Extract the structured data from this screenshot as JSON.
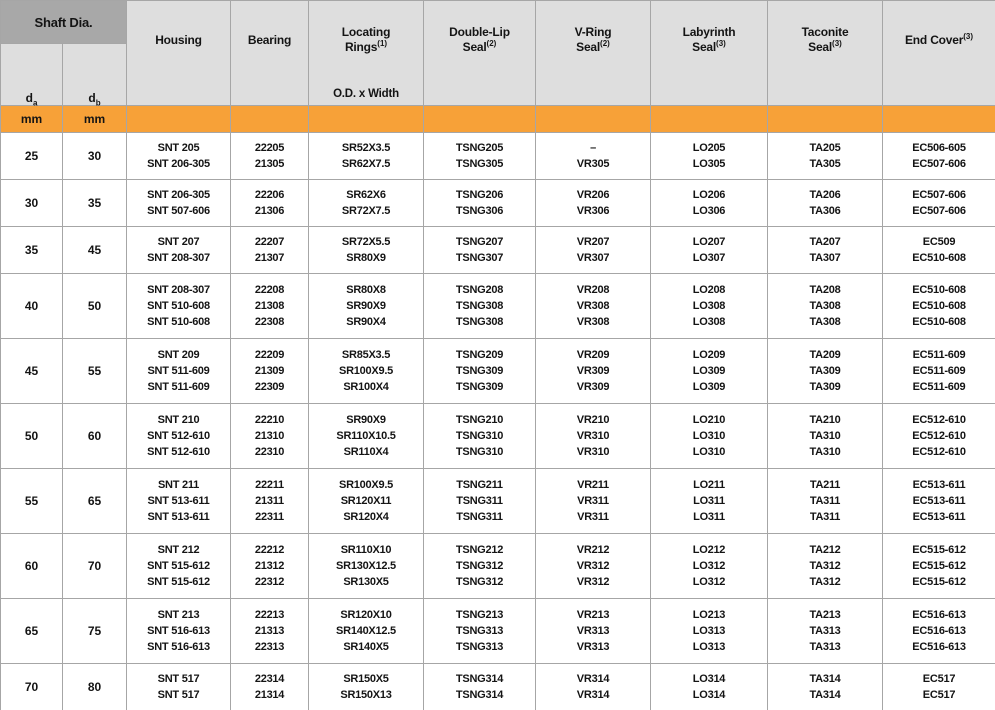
{
  "colors": {
    "orange": "#F7A138",
    "header_dark": "#A8A8A8",
    "header_light": "#DEDEDE",
    "grid_line": "#A6A6A6",
    "text": "#141414",
    "orange_divider": "#C4883A"
  },
  "table": {
    "shaft_group": {
      "title": "Shaft Dia.",
      "sub_columns": [
        {
          "symbol": "d",
          "subscript": "a",
          "unit": "mm"
        },
        {
          "symbol": "d",
          "subscript": "b",
          "unit": "mm"
        }
      ]
    },
    "columns": [
      {
        "key": "housing",
        "lines": [
          "Housing"
        ],
        "sup": "",
        "note": ""
      },
      {
        "key": "bearing",
        "lines": [
          "Bearing"
        ],
        "sup": "",
        "note": ""
      },
      {
        "key": "locating-rings",
        "lines": [
          "Locating",
          "Rings"
        ],
        "sup": "(1)",
        "note": "O.D. x Width"
      },
      {
        "key": "double-lip-seal",
        "lines": [
          "Double-Lip",
          "Seal"
        ],
        "sup": "(2)",
        "note": ""
      },
      {
        "key": "v-ring-seal",
        "lines": [
          "V-Ring",
          "Seal"
        ],
        "sup": "(2)",
        "note": ""
      },
      {
        "key": "labyrinth-seal",
        "lines": [
          "Labyrinth",
          "Seal"
        ],
        "sup": "(3)",
        "note": ""
      },
      {
        "key": "taconite-seal",
        "lines": [
          "Taconite",
          "Seal"
        ],
        "sup": "(3)",
        "note": ""
      },
      {
        "key": "end-cover",
        "lines": [
          "End Cover"
        ],
        "sup": "(3)",
        "note": ""
      }
    ],
    "rows": [
      {
        "da": "25",
        "db": "30",
        "housing": [
          "SNT 205",
          "SNT 206-305"
        ],
        "bearing": [
          "22205",
          "21305"
        ],
        "locating_rings": [
          "SR52X3.5",
          "SR62X7.5"
        ],
        "double_lip_seal": [
          "TSNG205",
          "TSNG305"
        ],
        "v_ring_seal": [
          "–",
          "VR305"
        ],
        "labyrinth_seal": [
          "LO205",
          "LO305"
        ],
        "taconite_seal": [
          "TA205",
          "TA305"
        ],
        "end_cover": [
          "EC506-605",
          "EC507-606"
        ]
      },
      {
        "da": "30",
        "db": "35",
        "housing": [
          "SNT 206-305",
          "SNT 507-606"
        ],
        "bearing": [
          "22206",
          "21306"
        ],
        "locating_rings": [
          "SR62X6",
          "SR72X7.5"
        ],
        "double_lip_seal": [
          "TSNG206",
          "TSNG306"
        ],
        "v_ring_seal": [
          "VR206",
          "VR306"
        ],
        "labyrinth_seal": [
          "LO206",
          "LO306"
        ],
        "taconite_seal": [
          "TA206",
          "TA306"
        ],
        "end_cover": [
          "EC507-606",
          "EC507-606"
        ]
      },
      {
        "da": "35",
        "db": "45",
        "housing": [
          "SNT 207",
          "SNT 208-307"
        ],
        "bearing": [
          "22207",
          "21307"
        ],
        "locating_rings": [
          "SR72X5.5",
          "SR80X9"
        ],
        "double_lip_seal": [
          "TSNG207",
          "TSNG307"
        ],
        "v_ring_seal": [
          "VR207",
          "VR307"
        ],
        "labyrinth_seal": [
          "LO207",
          "LO307"
        ],
        "taconite_seal": [
          "TA207",
          "TA307"
        ],
        "end_cover": [
          "EC509",
          "EC510-608"
        ]
      },
      {
        "da": "40",
        "db": "50",
        "housing": [
          "SNT 208-307",
          "SNT 510-608",
          "SNT 510-608"
        ],
        "bearing": [
          "22208",
          "21308",
          "22308"
        ],
        "locating_rings": [
          "SR80X8",
          "SR90X9",
          "SR90X4"
        ],
        "double_lip_seal": [
          "TSNG208",
          "TSNG308",
          "TSNG308"
        ],
        "v_ring_seal": [
          "VR208",
          "VR308",
          "VR308"
        ],
        "labyrinth_seal": [
          "LO208",
          "LO308",
          "LO308"
        ],
        "taconite_seal": [
          "TA208",
          "TA308",
          "TA308"
        ],
        "end_cover": [
          "EC510-608",
          "EC510-608",
          "EC510-608"
        ]
      },
      {
        "da": "45",
        "db": "55",
        "housing": [
          "SNT 209",
          "SNT 511-609",
          "SNT 511-609"
        ],
        "bearing": [
          "22209",
          "21309",
          "22309"
        ],
        "locating_rings": [
          "SR85X3.5",
          "SR100X9.5",
          "SR100X4"
        ],
        "double_lip_seal": [
          "TSNG209",
          "TSNG309",
          "TSNG309"
        ],
        "v_ring_seal": [
          "VR209",
          "VR309",
          "VR309"
        ],
        "labyrinth_seal": [
          "LO209",
          "LO309",
          "LO309"
        ],
        "taconite_seal": [
          "TA209",
          "TA309",
          "TA309"
        ],
        "end_cover": [
          "EC511-609",
          "EC511-609",
          "EC511-609"
        ]
      },
      {
        "da": "50",
        "db": "60",
        "housing": [
          "SNT 210",
          "SNT 512-610",
          "SNT 512-610"
        ],
        "bearing": [
          "22210",
          "21310",
          "22310"
        ],
        "locating_rings": [
          "SR90X9",
          "SR110X10.5",
          "SR110X4"
        ],
        "double_lip_seal": [
          "TSNG210",
          "TSNG310",
          "TSNG310"
        ],
        "v_ring_seal": [
          "VR210",
          "VR310",
          "VR310"
        ],
        "labyrinth_seal": [
          "LO210",
          "LO310",
          "LO310"
        ],
        "taconite_seal": [
          "TA210",
          "TA310",
          "TA310"
        ],
        "end_cover": [
          "EC512-610",
          "EC512-610",
          "EC512-610"
        ]
      },
      {
        "da": "55",
        "db": "65",
        "housing": [
          "SNT 211",
          "SNT 513-611",
          "SNT 513-611"
        ],
        "bearing": [
          "22211",
          "21311",
          "22311"
        ],
        "locating_rings": [
          "SR100X9.5",
          "SR120X11",
          "SR120X4"
        ],
        "double_lip_seal": [
          "TSNG211",
          "TSNG311",
          "TSNG311"
        ],
        "v_ring_seal": [
          "VR211",
          "VR311",
          "VR311"
        ],
        "labyrinth_seal": [
          "LO211",
          "LO311",
          "LO311"
        ],
        "taconite_seal": [
          "TA211",
          "TA311",
          "TA311"
        ],
        "end_cover": [
          "EC513-611",
          "EC513-611",
          "EC513-611"
        ]
      },
      {
        "da": "60",
        "db": "70",
        "housing": [
          "SNT 212",
          "SNT 515-612",
          "SNT 515-612"
        ],
        "bearing": [
          "22212",
          "21312",
          "22312"
        ],
        "locating_rings": [
          "SR110X10",
          "SR130X12.5",
          "SR130X5"
        ],
        "double_lip_seal": [
          "TSNG212",
          "TSNG312",
          "TSNG312"
        ],
        "v_ring_seal": [
          "VR212",
          "VR312",
          "VR312"
        ],
        "labyrinth_seal": [
          "LO212",
          "LO312",
          "LO312"
        ],
        "taconite_seal": [
          "TA212",
          "TA312",
          "TA312"
        ],
        "end_cover": [
          "EC515-612",
          "EC515-612",
          "EC515-612"
        ]
      },
      {
        "da": "65",
        "db": "75",
        "housing": [
          "SNT 213",
          "SNT 516-613",
          "SNT 516-613"
        ],
        "bearing": [
          "22213",
          "21313",
          "22313"
        ],
        "locating_rings": [
          "SR120X10",
          "SR140X12.5",
          "SR140X5"
        ],
        "double_lip_seal": [
          "TSNG213",
          "TSNG313",
          "TSNG313"
        ],
        "v_ring_seal": [
          "VR213",
          "VR313",
          "VR313"
        ],
        "labyrinth_seal": [
          "LO213",
          "LO313",
          "LO313"
        ],
        "taconite_seal": [
          "TA213",
          "TA313",
          "TA313"
        ],
        "end_cover": [
          "EC516-613",
          "EC516-613",
          "EC516-613"
        ]
      },
      {
        "da": "70",
        "db": "80",
        "housing": [
          "SNT 517",
          "SNT 517"
        ],
        "bearing": [
          "22314",
          "21314"
        ],
        "locating_rings": [
          "SR150X5",
          "SR150X13"
        ],
        "double_lip_seal": [
          "TSNG314",
          "TSNG314"
        ],
        "v_ring_seal": [
          "VR314",
          "VR314"
        ],
        "labyrinth_seal": [
          "LO314",
          "LO314"
        ],
        "taconite_seal": [
          "TA314",
          "TA314"
        ],
        "end_cover": [
          "EC517",
          "EC517"
        ]
      }
    ]
  }
}
